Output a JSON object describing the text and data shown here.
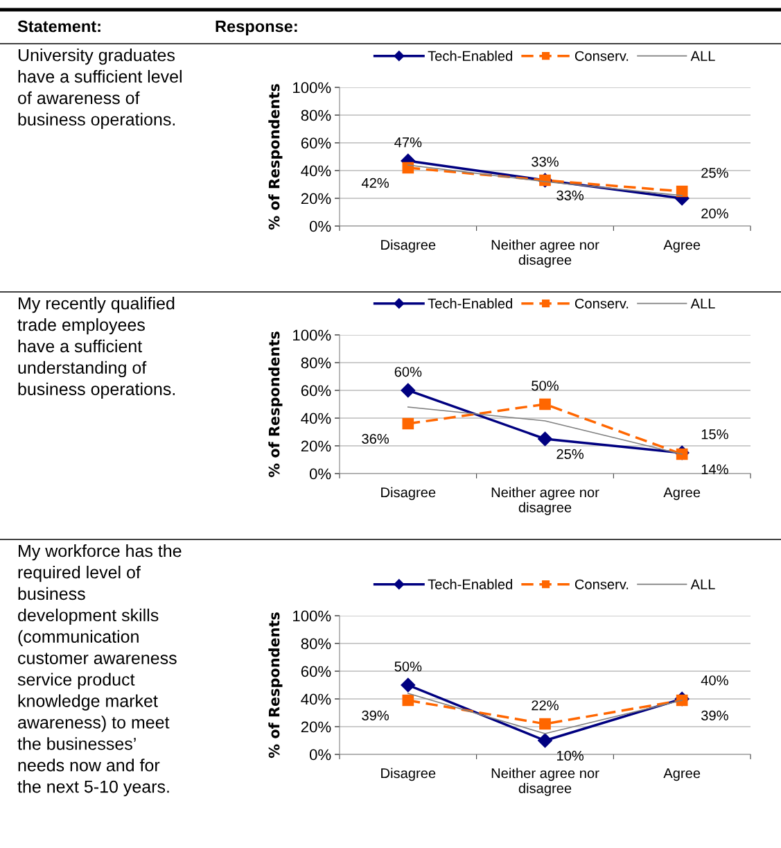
{
  "chart_data": [
    {
      "type": "line",
      "annotations": [
        "Statement:",
        "Response:",
        "University graduates\nhave a sufficient level\nof awareness of\nbusiness operations."
      ],
      "ylabel": "% of Respondents",
      "categories": [
        "Disagree",
        "Neither agree nor\ndisagree",
        "Agree"
      ],
      "series": [
        {
          "name": "Tech-Enabled",
          "color": "#000080",
          "marker": "diamond",
          "line_style": "solid",
          "values": [
            47,
            33,
            20
          ],
          "value_labels": [
            "47%",
            "33%",
            "20%"
          ]
        },
        {
          "name": "Conserv.",
          "color": "#ff6600",
          "marker": "square",
          "line_style": "dashed",
          "values": [
            42,
            33,
            25
          ],
          "value_labels": [
            "42%",
            "33%",
            "25%"
          ]
        },
        {
          "name": "ALL",
          "color": "#808080",
          "marker": "none",
          "line_style": "solid",
          "values": [
            44,
            32,
            22
          ]
        }
      ],
      "ylim": [
        0,
        100
      ],
      "yticks": [
        {
          "value": 0,
          "label": "0%"
        },
        {
          "value": 20,
          "label": "20%"
        },
        {
          "value": 40,
          "label": "40%"
        },
        {
          "value": 60,
          "label": "60%"
        },
        {
          "value": 80,
          "label": "80%"
        },
        {
          "value": 100,
          "label": "100%"
        }
      ],
      "grid": "y",
      "legend": "top"
    },
    {
      "type": "line",
      "annotations": [
        "My recently qualified\ntrade employees\nhave a sufficient\nunderstanding of\nbusiness operations."
      ],
      "ylabel": "% of Respondents",
      "categories": [
        "Disagree",
        "Neither agree nor\ndisagree",
        "Agree"
      ],
      "series": [
        {
          "name": "Tech-Enabled",
          "color": "#000080",
          "marker": "diamond",
          "line_style": "solid",
          "values": [
            60,
            25,
            15
          ],
          "value_labels": [
            "60%",
            "25%",
            "15%"
          ]
        },
        {
          "name": "Conserv.",
          "color": "#ff6600",
          "marker": "square",
          "line_style": "dashed",
          "values": [
            36,
            50,
            14
          ],
          "value_labels": [
            "36%",
            "50%",
            "14%"
          ]
        },
        {
          "name": "ALL",
          "color": "#808080",
          "marker": "none",
          "line_style": "solid",
          "values": [
            48,
            38,
            14
          ]
        }
      ],
      "ylim": [
        0,
        100
      ],
      "yticks": [
        {
          "value": 0,
          "label": "0%"
        },
        {
          "value": 20,
          "label": "20%"
        },
        {
          "value": 40,
          "label": "40%"
        },
        {
          "value": 60,
          "label": "60%"
        },
        {
          "value": 80,
          "label": "80%"
        },
        {
          "value": 100,
          "label": "100%"
        }
      ],
      "grid": "y",
      "legend": "top"
    },
    {
      "type": "line",
      "annotations": [
        "My workforce has the\nrequired level of\nbusiness\ndevelopment skills\n(communication\ncustomer awareness\nservice product\nknowledge market\nawareness) to meet\nthe businesses’\nneeds now and for\nthe next 5-10 years."
      ],
      "ylabel": "% of Respondents",
      "categories": [
        "Disagree",
        "Neither agree nor\ndisagree",
        "Agree"
      ],
      "series": [
        {
          "name": "Tech-Enabled",
          "color": "#000080",
          "marker": "diamond",
          "line_style": "solid",
          "values": [
            50,
            10,
            40
          ],
          "value_labels": [
            "50%",
            "10%",
            "40%"
          ]
        },
        {
          "name": "Conserv.",
          "color": "#ff6600",
          "marker": "square",
          "line_style": "dashed",
          "values": [
            39,
            22,
            39
          ],
          "value_labels": [
            "39%",
            "22%",
            "39%"
          ]
        },
        {
          "name": "ALL",
          "color": "#808080",
          "marker": "none",
          "line_style": "solid",
          "values": [
            44,
            15,
            39
          ]
        }
      ],
      "ylim": [
        0,
        100
      ],
      "yticks": [
        {
          "value": 0,
          "label": "0%"
        },
        {
          "value": 20,
          "label": "20%"
        },
        {
          "value": 40,
          "label": "40%"
        },
        {
          "value": 60,
          "label": "60%"
        },
        {
          "value": 80,
          "label": "80%"
        },
        {
          "value": 100,
          "label": "100%"
        }
      ],
      "grid": "y",
      "legend": "top"
    }
  ]
}
